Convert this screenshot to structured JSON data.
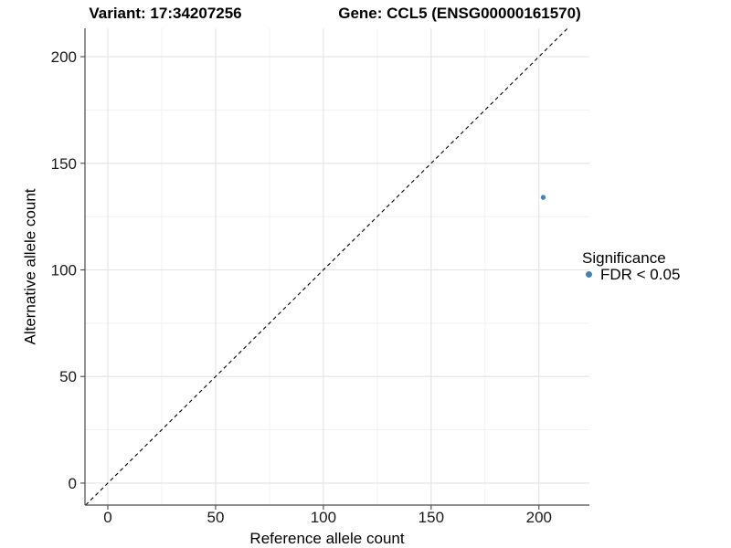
{
  "titles": {
    "variant": "Variant: 17:34207256",
    "gene": "Gene: CCL5 (ENSG00000161570)"
  },
  "axes": {
    "x_label": "Reference allele count",
    "y_label": "Alternative allele count"
  },
  "legend": {
    "title": "Significance",
    "items": [
      {
        "label": "FDR < 0.05",
        "color": "#4682B4"
      }
    ]
  },
  "colors": {
    "point": "#4682B4",
    "axis_line": "#4a4a4a",
    "grid_major": "#e3e3e3",
    "grid_minor": "#f0f0f0",
    "identity_line": "#000000",
    "tick_text": "#1a1a1a"
  },
  "chart_data": {
    "type": "scatter",
    "title": "Variant: 17:34207256 | Gene: CCL5 (ENSG00000161570)",
    "xlabel": "Reference allele count",
    "ylabel": "Alternative allele count",
    "xlim": [
      -10.6,
      223.4
    ],
    "ylim": [
      -10.3,
      213.3
    ],
    "x_ticks": [
      0,
      50,
      100,
      150,
      200
    ],
    "y_ticks": [
      0,
      50,
      100,
      150,
      200
    ],
    "x_minor_ticks": [
      25,
      75,
      125,
      175
    ],
    "y_minor_ticks": [
      25,
      75,
      125,
      175
    ],
    "grid": "major+minor",
    "identity_line": {
      "slope": 1,
      "intercept": 0,
      "style": "dashed",
      "color": "#000000"
    },
    "series": [
      {
        "name": "FDR < 0.05",
        "color": "#4682B4",
        "points": [
          {
            "x": 202,
            "y": 134
          }
        ]
      }
    ],
    "legend_position": "right",
    "legend_title": "Significance"
  }
}
